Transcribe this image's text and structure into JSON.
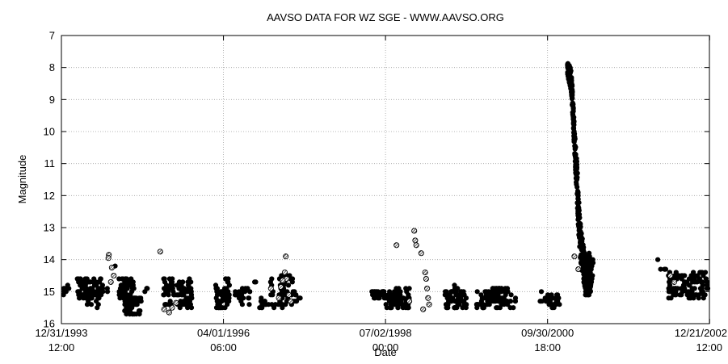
{
  "chart_data": {
    "type": "scatter",
    "title": "AAVSO DATA FOR WZ SGE - WWW.AAVSO.ORG",
    "xlabel": "Date",
    "ylabel": "Magnitude",
    "y_inverted": true,
    "ylim": [
      7,
      16
    ],
    "y_ticks": [
      "7",
      "8",
      "9",
      "10",
      "11",
      "12",
      "13",
      "14",
      "15",
      "16"
    ],
    "xlim": [
      0,
      3278
    ],
    "x_ticks": [
      {
        "value": 0,
        "date": "12/31/1993",
        "time": "12:00"
      },
      {
        "value": 819.75,
        "date": "04/01/1996",
        "time": "06:00"
      },
      {
        "value": 1639.5,
        "date": "07/02/1998",
        "time": "00:00"
      },
      {
        "value": 2459.25,
        "date": "09/30/2000",
        "time": "18:00"
      },
      {
        "value": 3279,
        "date": "12/21/2002",
        "time": "12:00"
      }
    ],
    "grid": true,
    "series": [
      {
        "marker": "filled-circle",
        "clusters": [
          {
            "x": [
              0,
              40
            ],
            "y": [
              14.75,
              15.1
            ],
            "n": 8
          },
          {
            "x": [
              80,
              210
            ],
            "y": [
              14.55,
              15.2
            ],
            "n": 90
          },
          {
            "x": [
              120,
              200
            ],
            "y": [
              15.2,
              15.5
            ],
            "n": 10
          },
          {
            "x": [
              230,
              240
            ],
            "y": [
              14.9,
              15.05
            ],
            "n": 2
          },
          {
            "x": [
              270,
              280
            ],
            "y": [
              14.15,
              14.25
            ],
            "n": 1
          },
          {
            "x": [
              290,
              370
            ],
            "y": [
              14.55,
              15.2
            ],
            "n": 60
          },
          {
            "x": [
              320,
              405
            ],
            "y": [
              15.2,
              15.75
            ],
            "n": 50
          },
          {
            "x": [
              410,
              440
            ],
            "y": [
              14.85,
              15.0
            ],
            "n": 4
          },
          {
            "x": [
              510,
              570
            ],
            "y": [
              14.55,
              15.15
            ],
            "n": 25
          },
          {
            "x": [
              520,
              560
            ],
            "y": [
              15.3,
              15.5
            ],
            "n": 8
          },
          {
            "x": [
              580,
              660
            ],
            "y": [
              14.6,
              15.5
            ],
            "n": 55
          },
          {
            "x": [
              780,
              850
            ],
            "y": [
              14.6,
              15.55
            ],
            "n": 55
          },
          {
            "x": [
              870,
              960
            ],
            "y": [
              14.9,
              15.4
            ],
            "n": 25
          },
          {
            "x": [
              970,
              990
            ],
            "y": [
              14.6,
              14.8
            ],
            "n": 2
          },
          {
            "x": [
              1000,
              1030
            ],
            "y": [
              15.15,
              15.45
            ],
            "n": 4
          },
          {
            "x": [
              1040,
              1070
            ],
            "y": [
              14.6,
              15.2
            ],
            "n": 8
          },
          {
            "x": [
              1000,
              1120
            ],
            "y": [
              15.3,
              15.5
            ],
            "n": 15
          },
          {
            "x": [
              1100,
              1170
            ],
            "y": [
              14.5,
              15.4
            ],
            "n": 45
          },
          {
            "x": [
              1170,
              1210
            ],
            "y": [
              15.0,
              15.3
            ],
            "n": 10
          },
          {
            "x": [
              1570,
              1640
            ],
            "y": [
              14.95,
              15.2
            ],
            "n": 30
          },
          {
            "x": [
              1640,
              1710
            ],
            "y": [
              15.0,
              15.5
            ],
            "n": 40
          },
          {
            "x": [
              1690,
              1760
            ],
            "y": [
              14.9,
              15.5
            ],
            "n": 40
          },
          {
            "x": [
              1940,
              2050
            ],
            "y": [
              14.95,
              15.5
            ],
            "n": 70
          },
          {
            "x": [
              1980,
              2010
            ],
            "y": [
              14.75,
              14.95
            ],
            "n": 4
          },
          {
            "x": [
              2100,
              2160
            ],
            "y": [
              14.95,
              15.5
            ],
            "n": 30
          },
          {
            "x": [
              2160,
              2260
            ],
            "y": [
              14.85,
              15.5
            ],
            "n": 65
          },
          {
            "x": [
              2270,
              2300
            ],
            "y": [
              15.0,
              15.5
            ],
            "n": 8
          },
          {
            "x": [
              2420,
              2450
            ],
            "y": [
              15.0,
              15.35
            ],
            "n": 5
          },
          {
            "x": [
              2450,
              2520
            ],
            "y": [
              15.1,
              15.5
            ],
            "n": 30
          },
          {
            "x": [
              2490,
              2500
            ],
            "y": [
              15.5,
              15.6
            ],
            "n": 1
          },
          {
            "x": [
              3010,
              3020
            ],
            "y": [
              13.95,
              14.05
            ],
            "n": 1
          },
          {
            "x": [
              3030,
              3060
            ],
            "y": [
              14.25,
              14.35
            ],
            "n": 4
          },
          {
            "x": [
              3070,
              3278
            ],
            "y": [
              14.4,
              15.2
            ],
            "n": 110
          }
        ],
        "outburst_band": {
          "x": [
            2560,
            2580,
            2590,
            2598,
            2604,
            2610,
            2616,
            2624,
            2634,
            2648,
            2662,
            2680
          ],
          "y_top": [
            7.8,
            8.1,
            9.3,
            10.2,
            10.6,
            11.2,
            12.0,
            12.8,
            13.3,
            13.8,
            14.0,
            14.2
          ],
          "y_bottom": [
            8.2,
            8.8,
            9.9,
            10.9,
            11.6,
            12.3,
            13.2,
            13.9,
            14.4,
            14.9,
            15.0,
            15.0
          ],
          "n": 420
        },
        "outburst_tail": {
          "x": [
            2650,
            2690
          ],
          "y": [
            13.8,
            15.1
          ],
          "n": 45
        }
      },
      {
        "marker": "hatched-circle",
        "points": [
          [
            240,
            13.85
          ],
          [
            238,
            13.95
          ],
          [
            255,
            14.25
          ],
          [
            265,
            14.5
          ],
          [
            250,
            14.7
          ],
          [
            500,
            13.75
          ],
          [
            520,
            15.55
          ],
          [
            545,
            15.65
          ],
          [
            560,
            15.5
          ],
          [
            580,
            15.35
          ],
          [
            1135,
            13.9
          ],
          [
            1130,
            14.4
          ],
          [
            1140,
            14.6
          ],
          [
            1120,
            14.65
          ],
          [
            1110,
            14.85
          ],
          [
            1150,
            15.1
          ],
          [
            1160,
            15.3
          ],
          [
            1100,
            15.2
          ],
          [
            1060,
            14.9
          ],
          [
            1695,
            13.55
          ],
          [
            1785,
            13.1
          ],
          [
            1790,
            13.4
          ],
          [
            1795,
            13.55
          ],
          [
            1820,
            13.8
          ],
          [
            1840,
            14.4
          ],
          [
            1845,
            14.6
          ],
          [
            1850,
            14.9
          ],
          [
            1855,
            15.2
          ],
          [
            1860,
            15.4
          ],
          [
            1830,
            15.55
          ],
          [
            1760,
            15.3
          ],
          [
            2595,
            13.9
          ],
          [
            2615,
            14.3
          ],
          [
            3080,
            14.5
          ],
          [
            3100,
            14.7
          ]
        ]
      }
    ]
  }
}
